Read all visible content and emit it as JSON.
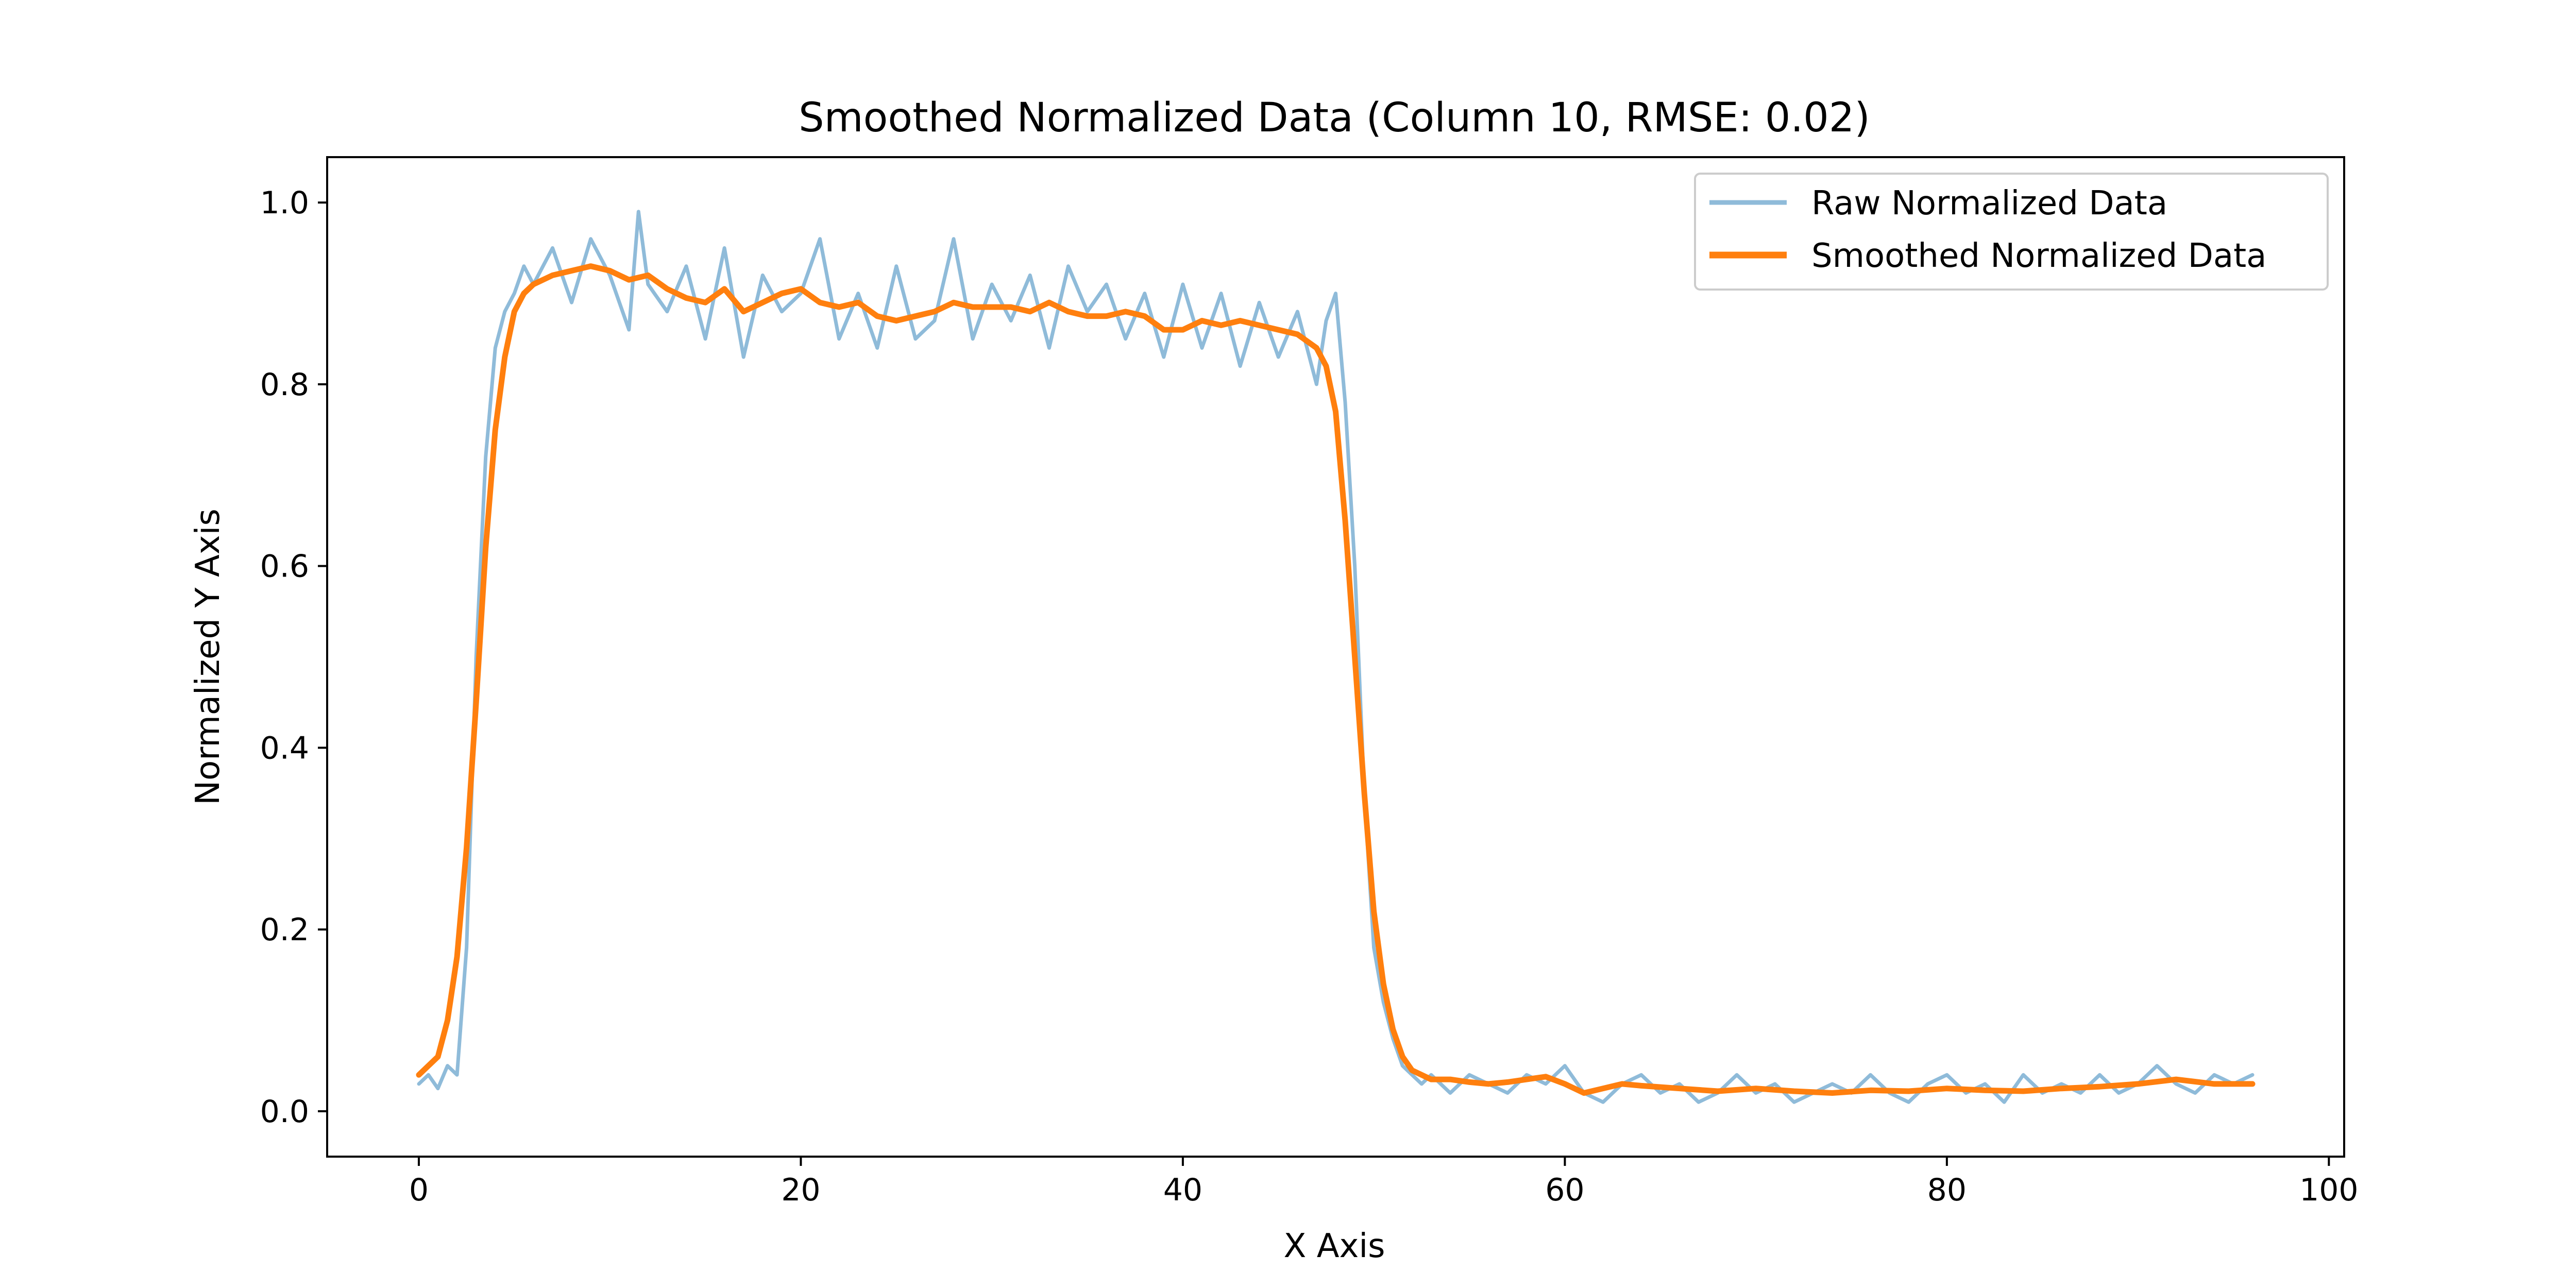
{
  "chart_data": {
    "type": "line",
    "title": "Smoothed Normalized Data (Column 10, RMSE: 0.02)",
    "xlabel": "X Axis",
    "ylabel": "Normalized Y Axis",
    "xlim": [
      -4.8,
      100.8
    ],
    "ylim": [
      -0.05,
      1.05
    ],
    "xticks": [
      0,
      20,
      40,
      60,
      80,
      100
    ],
    "yticks": [
      0.0,
      0.2,
      0.4,
      0.6,
      0.8,
      1.0
    ],
    "xtick_labels": [
      "0",
      "20",
      "40",
      "60",
      "80",
      "100"
    ],
    "ytick_labels": [
      "0.0",
      "0.2",
      "0.4",
      "0.6",
      "0.8",
      "1.0"
    ],
    "grid": false,
    "legend_position": "top-right",
    "series": [
      {
        "name": "Raw Normalized Data",
        "color": "#8fbbd9",
        "x": [
          0,
          0.5,
          1,
          1.5,
          2,
          2.5,
          3,
          3.5,
          4,
          4.5,
          5,
          5.5,
          6,
          7,
          8,
          9,
          10,
          11,
          11.5,
          12,
          13,
          14,
          15,
          16,
          17,
          18,
          19,
          20,
          21,
          22,
          23,
          24,
          25,
          26,
          27,
          28,
          29,
          30,
          31,
          32,
          33,
          34,
          35,
          36,
          37,
          38,
          39,
          40,
          41,
          42,
          43,
          44,
          45,
          46,
          47,
          47.5,
          48,
          48.5,
          49,
          49.5,
          50,
          50.5,
          51,
          51.5,
          52,
          52.5,
          53,
          54,
          55,
          56,
          57,
          58,
          59,
          60,
          61,
          62,
          63,
          64,
          65,
          66,
          67,
          68,
          69,
          70,
          71,
          72,
          73,
          74,
          75,
          76,
          77,
          78,
          79,
          80,
          81,
          82,
          83,
          84,
          85,
          86,
          87,
          88,
          89,
          90,
          91,
          92,
          93,
          94,
          95,
          96
        ],
        "y": [
          0.03,
          0.04,
          0.025,
          0.05,
          0.04,
          0.18,
          0.5,
          0.72,
          0.84,
          0.88,
          0.9,
          0.93,
          0.91,
          0.95,
          0.89,
          0.96,
          0.92,
          0.86,
          0.99,
          0.91,
          0.88,
          0.93,
          0.85,
          0.95,
          0.83,
          0.92,
          0.88,
          0.9,
          0.96,
          0.85,
          0.9,
          0.84,
          0.93,
          0.85,
          0.87,
          0.96,
          0.85,
          0.91,
          0.87,
          0.92,
          0.84,
          0.93,
          0.88,
          0.91,
          0.85,
          0.9,
          0.83,
          0.91,
          0.84,
          0.9,
          0.82,
          0.89,
          0.83,
          0.88,
          0.8,
          0.87,
          0.9,
          0.78,
          0.6,
          0.35,
          0.18,
          0.12,
          0.08,
          0.05,
          0.04,
          0.03,
          0.04,
          0.02,
          0.04,
          0.03,
          0.02,
          0.04,
          0.03,
          0.05,
          0.02,
          0.01,
          0.03,
          0.04,
          0.02,
          0.03,
          0.01,
          0.02,
          0.04,
          0.02,
          0.03,
          0.01,
          0.02,
          0.03,
          0.02,
          0.04,
          0.02,
          0.01,
          0.03,
          0.04,
          0.02,
          0.03,
          0.01,
          0.04,
          0.02,
          0.03,
          0.02,
          0.04,
          0.02,
          0.03,
          0.05,
          0.03,
          0.02,
          0.04,
          0.03,
          0.04
        ]
      },
      {
        "name": "Smoothed Normalized Data",
        "color": "#ff7f0e",
        "x": [
          0,
          1,
          1.5,
          2,
          2.5,
          3,
          3.5,
          4,
          4.5,
          5,
          5.5,
          6,
          7,
          8,
          9,
          10,
          11,
          12,
          13,
          14,
          15,
          16,
          17,
          18,
          19,
          20,
          21,
          22,
          23,
          24,
          25,
          26,
          27,
          28,
          29,
          30,
          31,
          32,
          33,
          34,
          35,
          36,
          37,
          38,
          39,
          40,
          41,
          42,
          43,
          44,
          45,
          46,
          47,
          47.5,
          48,
          48.5,
          49,
          49.5,
          50,
          50.5,
          51,
          51.5,
          52,
          53,
          54,
          55,
          56,
          57,
          58,
          59,
          60,
          61,
          62,
          63,
          64,
          66,
          68,
          70,
          72,
          74,
          76,
          78,
          80,
          82,
          84,
          86,
          88,
          90,
          92,
          94,
          96
        ],
        "y": [
          0.04,
          0.06,
          0.1,
          0.17,
          0.29,
          0.45,
          0.62,
          0.75,
          0.83,
          0.88,
          0.9,
          0.91,
          0.92,
          0.925,
          0.93,
          0.925,
          0.915,
          0.92,
          0.905,
          0.895,
          0.89,
          0.905,
          0.88,
          0.89,
          0.9,
          0.905,
          0.89,
          0.885,
          0.89,
          0.875,
          0.87,
          0.875,
          0.88,
          0.89,
          0.885,
          0.885,
          0.885,
          0.88,
          0.89,
          0.88,
          0.875,
          0.875,
          0.88,
          0.875,
          0.86,
          0.86,
          0.87,
          0.865,
          0.87,
          0.865,
          0.86,
          0.855,
          0.84,
          0.82,
          0.77,
          0.65,
          0.5,
          0.35,
          0.22,
          0.14,
          0.09,
          0.06,
          0.045,
          0.035,
          0.035,
          0.032,
          0.03,
          0.032,
          0.035,
          0.038,
          0.03,
          0.02,
          0.025,
          0.03,
          0.028,
          0.025,
          0.022,
          0.025,
          0.022,
          0.02,
          0.023,
          0.022,
          0.025,
          0.023,
          0.022,
          0.025,
          0.027,
          0.03,
          0.035,
          0.03,
          0.03
        ]
      }
    ]
  }
}
